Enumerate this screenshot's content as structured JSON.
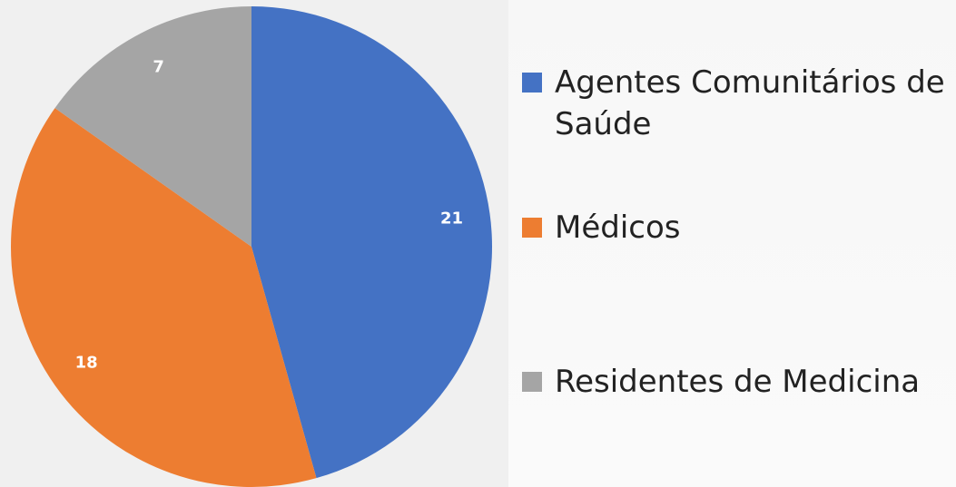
{
  "chart_data": {
    "type": "pie",
    "categories": [
      "Agentes Comunitários de Saúde",
      "Médicos",
      "Residentes de Medicina"
    ],
    "values": [
      21,
      18,
      7
    ],
    "colors": [
      "#4472c4",
      "#ed7d31",
      "#a5a5a5"
    ]
  }
}
